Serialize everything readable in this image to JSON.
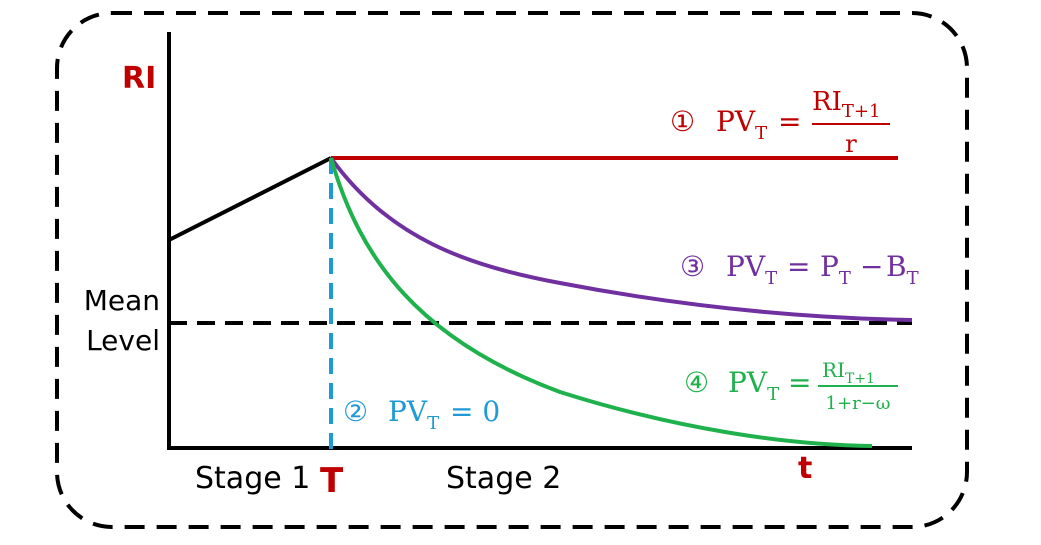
{
  "axis": {
    "y_label": "RI",
    "x_label": "t",
    "mean_label_line1": "Mean",
    "mean_label_line2": "Level"
  },
  "stages": {
    "stage1": "Stage 1",
    "t_marker": "T",
    "stage2": "Stage 2"
  },
  "formulas": {
    "f1": {
      "num": "①",
      "lhs": "PV",
      "lhs_sub": "T",
      "eq": "=",
      "frac_num": "RI",
      "frac_num_sub": "T+1",
      "frac_den": "r"
    },
    "f2": {
      "num": "②",
      "lhs": "PV",
      "lhs_sub": "T",
      "rhs": "= 0"
    },
    "f3": {
      "num": "③",
      "lhs": "PV",
      "lhs_sub": "T",
      "eq": "=",
      "p": "P",
      "p_sub": "T",
      "minus": "−",
      "b": "B",
      "b_sub": "T"
    },
    "f4": {
      "num": "④",
      "lhs": "PV",
      "lhs_sub": "T",
      "eq": "=",
      "frac_num": "RI",
      "frac_num_sub": "T+1",
      "frac_den": "1+r−ω"
    }
  },
  "colors": {
    "red": "#c00000",
    "blue": "#1f9ad6",
    "purple": "#7030a0",
    "green": "#1fb14c",
    "black": "#000000"
  }
}
